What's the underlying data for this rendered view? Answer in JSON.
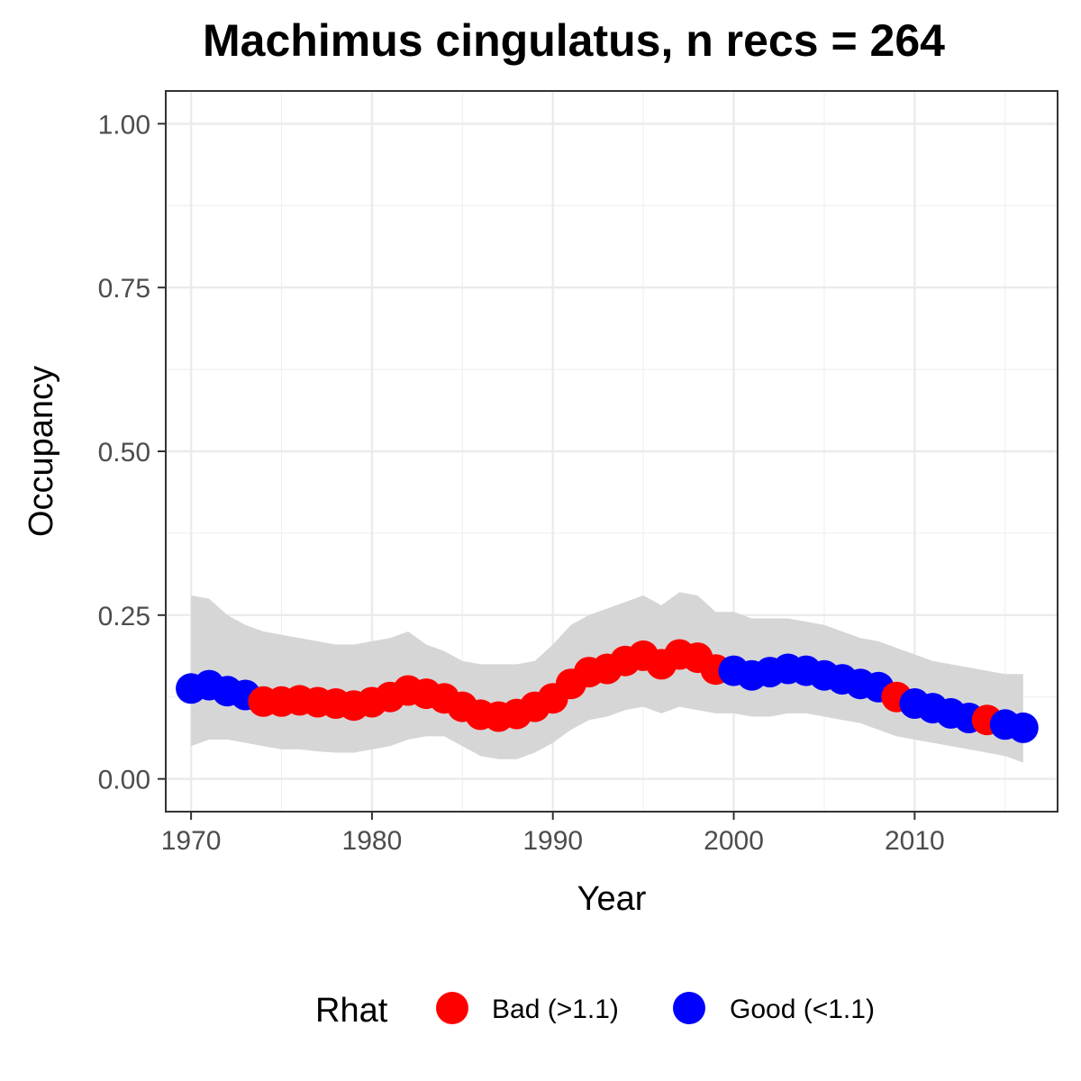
{
  "chart_data": {
    "type": "line",
    "title": "Machimus cingulatus, n recs = 264",
    "xlabel": "Year",
    "ylabel": "Occupancy",
    "xlim": [
      1968.6,
      2017.9
    ],
    "ylim": [
      -0.05,
      1.05
    ],
    "x_ticks": [
      1970,
      1980,
      1990,
      2000,
      2010
    ],
    "y_ticks": [
      0,
      0.25,
      0.5,
      0.75,
      1
    ],
    "y_tick_labels": [
      "0.00",
      "0.25",
      "0.50",
      "0.75",
      "1.00"
    ],
    "grid": true,
    "legend": {
      "title": "Rhat",
      "position": "bottom",
      "entries": [
        {
          "label": "Bad (>1.1)",
          "color": "#ff0000"
        },
        {
          "label": "Good (<1.1)",
          "color": "#0000ff"
        }
      ]
    },
    "colors": {
      "bad": "#ff0000",
      "good": "#0000ff",
      "ribbon": "#d6d6d6"
    },
    "series": [
      {
        "x": [
          1970,
          1971,
          1972,
          1973,
          1974,
          1975,
          1976,
          1977,
          1978,
          1979,
          1980,
          1981,
          1982,
          1983,
          1984,
          1985,
          1986,
          1987,
          1988,
          1989,
          1990,
          1991,
          1992,
          1993,
          1994,
          1995,
          1996,
          1997,
          1998,
          1999,
          2000,
          2001,
          2002,
          2003,
          2004,
          2005,
          2006,
          2007,
          2008,
          2009,
          2010,
          2011,
          2012,
          2013,
          2014,
          2015,
          2016
        ],
        "values": [
          0.138,
          0.143,
          0.134,
          0.128,
          0.118,
          0.118,
          0.12,
          0.117,
          0.115,
          0.112,
          0.117,
          0.125,
          0.135,
          0.13,
          0.123,
          0.11,
          0.098,
          0.095,
          0.099,
          0.11,
          0.123,
          0.145,
          0.163,
          0.168,
          0.18,
          0.188,
          0.175,
          0.19,
          0.185,
          0.167,
          0.165,
          0.158,
          0.163,
          0.168,
          0.165,
          0.158,
          0.152,
          0.145,
          0.14,
          0.125,
          0.115,
          0.108,
          0.1,
          0.093,
          0.09,
          0.083,
          0.078
        ],
        "lower": [
          0.05,
          0.06,
          0.06,
          0.055,
          0.05,
          0.045,
          0.045,
          0.042,
          0.04,
          0.04,
          0.045,
          0.05,
          0.06,
          0.065,
          0.065,
          0.05,
          0.035,
          0.03,
          0.03,
          0.04,
          0.055,
          0.075,
          0.09,
          0.095,
          0.105,
          0.11,
          0.1,
          0.11,
          0.105,
          0.1,
          0.1,
          0.095,
          0.095,
          0.1,
          0.1,
          0.095,
          0.09,
          0.085,
          0.075,
          0.065,
          0.06,
          0.055,
          0.05,
          0.045,
          0.04,
          0.035,
          0.025
        ],
        "upper": [
          0.28,
          0.275,
          0.25,
          0.235,
          0.225,
          0.22,
          0.215,
          0.21,
          0.205,
          0.205,
          0.21,
          0.215,
          0.225,
          0.205,
          0.195,
          0.18,
          0.175,
          0.175,
          0.175,
          0.18,
          0.205,
          0.235,
          0.25,
          0.26,
          0.27,
          0.28,
          0.265,
          0.285,
          0.28,
          0.255,
          0.255,
          0.245,
          0.245,
          0.245,
          0.24,
          0.235,
          0.225,
          0.215,
          0.21,
          0.2,
          0.19,
          0.18,
          0.175,
          0.17,
          0.165,
          0.16,
          0.16
        ],
        "rhat": [
          "good",
          "good",
          "good",
          "good",
          "bad",
          "bad",
          "bad",
          "bad",
          "bad",
          "bad",
          "bad",
          "bad",
          "bad",
          "bad",
          "bad",
          "bad",
          "bad",
          "bad",
          "bad",
          "bad",
          "bad",
          "bad",
          "bad",
          "bad",
          "bad",
          "bad",
          "bad",
          "bad",
          "bad",
          "bad",
          "good",
          "good",
          "good",
          "good",
          "good",
          "good",
          "good",
          "good",
          "good",
          "bad",
          "good",
          "good",
          "good",
          "good",
          "bad",
          "good",
          "good"
        ]
      }
    ]
  }
}
